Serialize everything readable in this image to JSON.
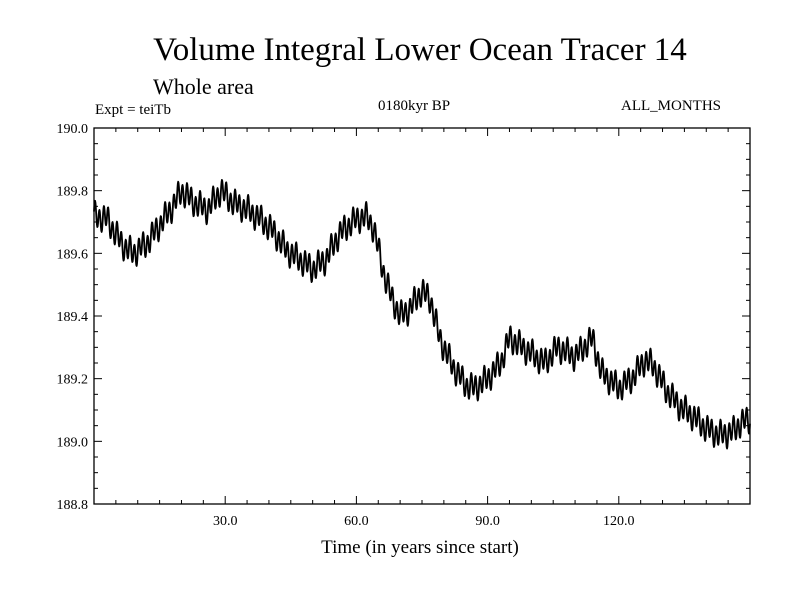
{
  "header": {
    "title": "Volume Integral Lower Ocean Tracer 14",
    "subtitle": "Whole area",
    "experiment": "Expt = teiTb",
    "period": "0180kyr BP",
    "months": "ALL_MONTHS"
  },
  "chart_data": {
    "type": "line",
    "title": "Volume Integral Lower Ocean Tracer 14",
    "subtitle": "Whole area",
    "xlabel": "Time (in years since start)",
    "ylabel": "",
    "xlim": [
      0,
      150
    ],
    "ylim": [
      188.8,
      190.0
    ],
    "xticks": [
      30,
      60,
      90,
      120
    ],
    "xtick_labels": [
      "30.0",
      "60.0",
      "90.0",
      "120.0"
    ],
    "yticks": [
      188.8,
      189.0,
      189.2,
      189.4,
      189.6,
      189.8,
      190.0
    ],
    "ytick_labels": [
      "188.8",
      "189.0",
      "189.2",
      "189.4",
      "189.6",
      "189.8",
      "190.0"
    ],
    "grid": false,
    "series": [
      {
        "name": "Volume Integral Lower Ocean Tracer 14",
        "color": "#000000",
        "oscillation_amplitude": 0.035,
        "x": [
          0,
          3,
          5,
          7,
          9,
          12,
          15,
          18,
          20,
          23,
          26,
          29,
          32,
          35,
          38,
          41,
          44,
          47,
          50,
          53,
          56,
          59,
          62,
          64,
          66,
          68,
          70,
          72,
          75,
          77,
          79,
          82,
          85,
          87,
          90,
          93,
          95,
          97,
          100,
          103,
          106,
          110,
          114,
          116,
          120,
          123,
          126,
          128,
          131,
          134,
          137,
          140,
          143,
          146,
          148,
          150
        ],
        "y": [
          189.72,
          189.71,
          189.66,
          189.62,
          189.6,
          189.63,
          189.69,
          189.75,
          189.8,
          189.76,
          189.74,
          189.8,
          189.76,
          189.74,
          189.71,
          189.67,
          189.61,
          189.58,
          189.55,
          189.58,
          189.66,
          189.7,
          189.72,
          189.68,
          189.55,
          189.46,
          189.4,
          189.42,
          189.48,
          189.45,
          189.33,
          189.24,
          189.18,
          189.17,
          189.2,
          189.25,
          189.33,
          189.31,
          189.28,
          189.25,
          189.3,
          189.27,
          189.33,
          189.22,
          189.17,
          189.2,
          189.26,
          189.24,
          189.16,
          189.11,
          189.08,
          189.04,
          189.02,
          189.03,
          189.06,
          189.07
        ]
      }
    ]
  }
}
